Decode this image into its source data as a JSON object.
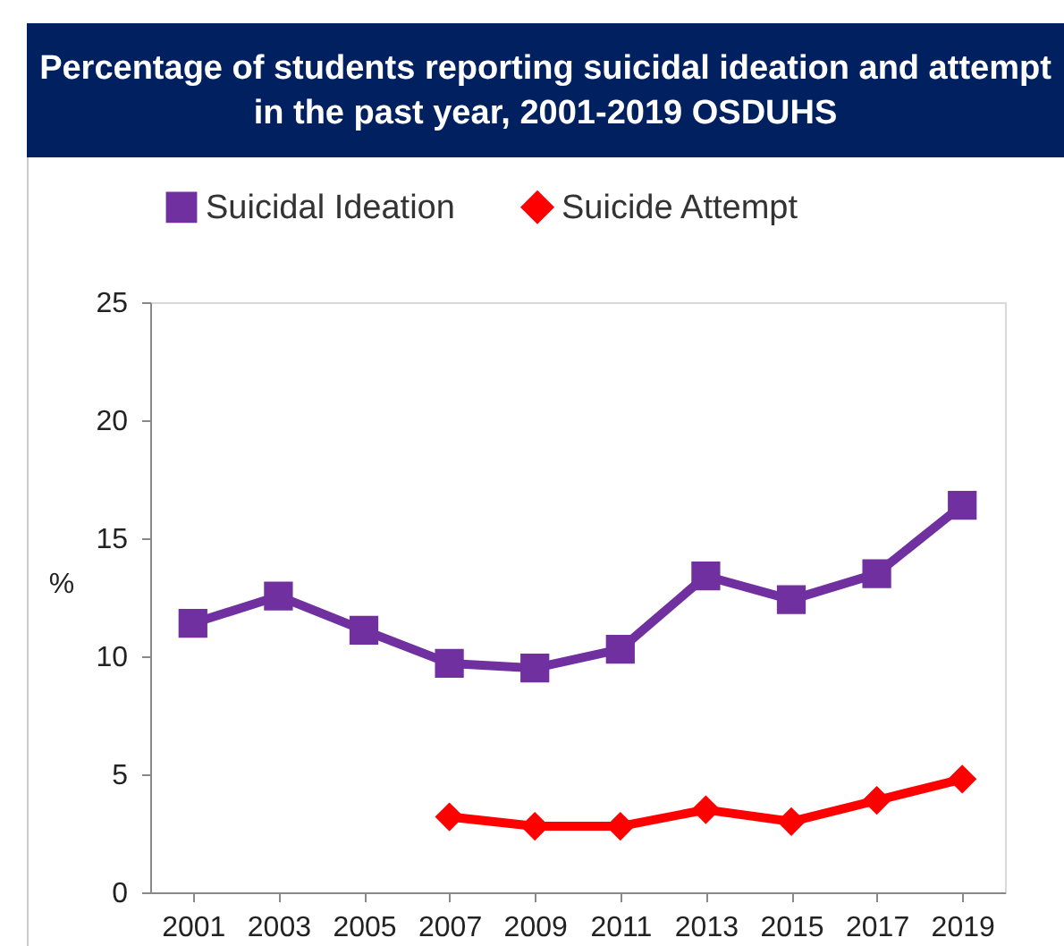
{
  "chart_data": {
    "type": "line",
    "title": "Percentage of students reporting suicidal ideation and attempt in the past year, 2001-2019 OSDUHS",
    "ylabel": "%",
    "categories": [
      "2001",
      "2003",
      "2005",
      "2007",
      "2009",
      "2011",
      "2013",
      "2015",
      "2017",
      "2019"
    ],
    "series": [
      {
        "name": "Suicidal Ideation",
        "color": "#7030a0",
        "marker": "square",
        "values": [
          11.4,
          12.55,
          11.1,
          9.7,
          9.5,
          10.3,
          13.4,
          12.4,
          13.5,
          16.4
        ]
      },
      {
        "name": "Suicide Attempt",
        "color": "#ff0000",
        "marker": "diamond",
        "values": [
          null,
          null,
          null,
          3.2,
          2.8,
          2.8,
          3.5,
          3.0,
          3.9,
          4.8
        ]
      }
    ],
    "ylim": [
      0,
      25
    ],
    "yticks": [
      0,
      5,
      10,
      15,
      20,
      25
    ],
    "grid": false,
    "legend": "top"
  }
}
